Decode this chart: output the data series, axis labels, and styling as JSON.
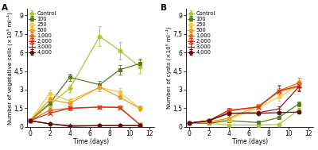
{
  "time": [
    0,
    2,
    4,
    7,
    9,
    11
  ],
  "series_labels": [
    "Control",
    "100",
    "250",
    "500",
    "1,000",
    "2,000",
    "3,000",
    "4,000"
  ],
  "colors": [
    "#a8c832",
    "#5a7a1e",
    "#f5c842",
    "#e8a020",
    "#e87020",
    "#cc3018",
    "#a01818",
    "#5a1010"
  ],
  "marker_map": {
    "Control": "o",
    "100": "s",
    "250": "o",
    "500": "o",
    "1,000": "o",
    "2,000": "x",
    "3,000": "+",
    "4,000": "o"
  },
  "veg_data": [
    [
      0.5,
      1.8,
      3.1,
      7.3,
      6.15,
      4.85
    ],
    [
      0.5,
      1.9,
      4.0,
      3.4,
      4.6,
      5.1
    ],
    [
      0.5,
      2.7,
      2.1,
      3.2,
      2.8,
      1.5
    ],
    [
      0.5,
      2.2,
      1.9,
      3.2,
      2.4,
      1.5
    ],
    [
      0.5,
      1.35,
      1.5,
      1.6,
      1.6,
      0.2
    ],
    [
      0.5,
      1.1,
      1.5,
      1.6,
      1.55,
      0.2
    ],
    [
      0.5,
      0.25,
      0.1,
      0.1,
      0.1,
      0.1
    ],
    [
      0.5,
      0.25,
      0.05,
      0.1,
      0.1,
      0.1
    ]
  ],
  "veg_err": [
    [
      0.05,
      0.2,
      0.3,
      0.8,
      0.7,
      0.5
    ],
    [
      0.05,
      0.2,
      0.3,
      0.3,
      0.4,
      0.4
    ],
    [
      0.05,
      0.3,
      0.2,
      0.3,
      0.3,
      0.2
    ],
    [
      0.05,
      0.2,
      0.2,
      0.3,
      0.2,
      0.15
    ],
    [
      0.05,
      0.15,
      0.15,
      0.15,
      0.15,
      0.05
    ],
    [
      0.05,
      0.1,
      0.1,
      0.15,
      0.1,
      0.05
    ],
    [
      0.05,
      0.05,
      0.05,
      0.05,
      0.05,
      0.05
    ],
    [
      0.05,
      0.05,
      0.05,
      0.05,
      0.05,
      0.05
    ]
  ],
  "cyst_data": [
    [
      0.3,
      0.3,
      0.15,
      0.15,
      0.2,
      1.35
    ],
    [
      0.3,
      0.3,
      0.5,
      0.35,
      0.75,
      1.85
    ],
    [
      0.3,
      0.4,
      0.6,
      1.55,
      2.4,
      3.3
    ],
    [
      0.3,
      0.4,
      0.7,
      1.7,
      2.8,
      3.25
    ],
    [
      0.3,
      0.5,
      1.25,
      1.65,
      2.9,
      3.55
    ],
    [
      0.3,
      0.5,
      1.35,
      1.6,
      2.9,
      3.3
    ],
    [
      0.3,
      0.5,
      1.1,
      1.15,
      1.45,
      3.2
    ],
    [
      0.3,
      0.5,
      1.1,
      1.1,
      1.15,
      1.2
    ]
  ],
  "cyst_err": [
    [
      0.05,
      0.05,
      0.05,
      0.05,
      0.05,
      0.2
    ],
    [
      0.05,
      0.05,
      0.1,
      0.05,
      0.1,
      0.2
    ],
    [
      0.05,
      0.05,
      0.1,
      0.15,
      0.3,
      0.3
    ],
    [
      0.05,
      0.05,
      0.1,
      0.15,
      0.3,
      0.3
    ],
    [
      0.05,
      0.05,
      0.15,
      0.2,
      0.5,
      0.4
    ],
    [
      0.05,
      0.05,
      0.15,
      0.15,
      0.4,
      0.35
    ],
    [
      0.05,
      0.05,
      0.15,
      0.15,
      0.2,
      0.3
    ],
    [
      0.05,
      0.05,
      0.1,
      0.1,
      0.1,
      0.15
    ]
  ],
  "ylabel_A": "Number of vegetative cells (×10⁵ ml⁻¹)",
  "ylabel_B": "Number of cysts (×10⁵ ml⁻¹)",
  "xlabel": "Time (days)",
  "ytick_vals": [
    0,
    1.5,
    3,
    4.5,
    6,
    7.5,
    9
  ],
  "ytick_labels": [
    "0",
    "1,5",
    "3",
    "4,5",
    "6",
    "7,5",
    "9"
  ],
  "ylim": [
    0,
    9.5
  ],
  "xlim": [
    -0.3,
    12.5
  ],
  "xticks": [
    0,
    2,
    4,
    6,
    8,
    10,
    12
  ],
  "label_A": "A",
  "label_B": "B",
  "background_color": "#ffffff",
  "markersize": 3.5,
  "linewidth": 0.9,
  "fontsize": 5.5,
  "legend_fontsize": 4.8
}
